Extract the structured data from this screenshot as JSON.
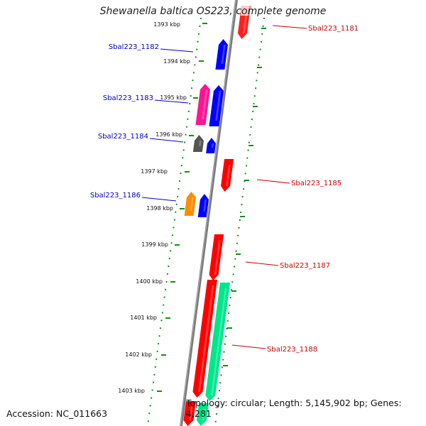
{
  "title": "Shewanella baltica OS223, complete genome",
  "footer": {
    "accession": "Accession: NC_011663",
    "summary": "Topology: circular; Length: 5,145,902 bp; Genes: 4,281"
  },
  "ticks": [
    "1393 kbp",
    "1394 kbp",
    "1395 kbp",
    "1396 kbp",
    "1397 kbp",
    "1398 kbp",
    "1399 kbp",
    "1400 kbp",
    "1401 kbp",
    "1402 kbp",
    "1403 kbp"
  ],
  "genes": {
    "left": [
      "Sbal223_1182",
      "Sbal223_1183",
      "Sbal223_1184",
      "Sbal223_1186"
    ],
    "right": [
      "Sbal223_1181",
      "Sbal223_1185",
      "Sbal223_1187",
      "Sbal223_1188"
    ]
  },
  "colors": {
    "forward_strand": "#ff0000",
    "reverse_strand": "#0000ff",
    "label_left": "#0000cc",
    "label_right": "#cc0000",
    "dotted_track": "#1a8a1a",
    "axis": "#888888",
    "pink": "#ff1493",
    "gray": "#555555",
    "orange": "#ff8c00",
    "green": "#00e68a"
  }
}
